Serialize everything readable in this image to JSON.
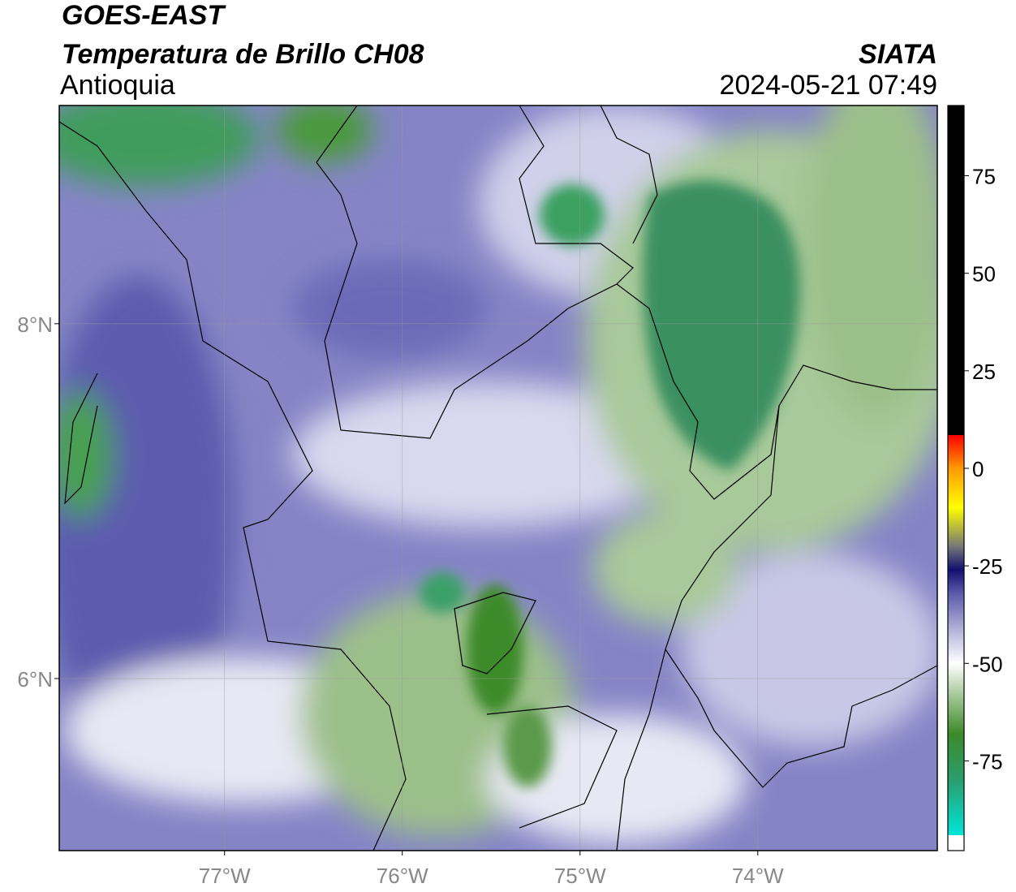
{
  "header": {
    "title": "GOES-EAST",
    "subtitle": "Temperatura de Brillo CH08",
    "region": "Antioquia",
    "source": "SIATA",
    "datetime": "2024-05-21 07:49"
  },
  "map": {
    "xlim": [
      -77.93,
      -72.99
    ],
    "ylim": [
      5.03,
      9.23
    ],
    "xticks": [
      {
        "value": -77,
        "label": "77°W"
      },
      {
        "value": -76,
        "label": "76°W"
      },
      {
        "value": -75,
        "label": "75°W"
      },
      {
        "value": -74,
        "label": "74°W"
      }
    ],
    "yticks": [
      {
        "value": 8,
        "label": "8°N"
      },
      {
        "value": 6,
        "label": "6°N"
      }
    ],
    "grid": true
  },
  "colorbar": {
    "lim": [
      -98,
      93
    ],
    "ticks": [
      75,
      50,
      25,
      0,
      -25,
      -50,
      -75
    ],
    "stops": [
      [
        -98,
        "#ffffff"
      ],
      [
        -94,
        "#ffffff"
      ],
      [
        -94,
        "#00e5d8"
      ],
      [
        -80,
        "#2a9e6e"
      ],
      [
        -68,
        "#3c8a2a"
      ],
      [
        -58,
        "#a8c99a"
      ],
      [
        -50,
        "#ffffff"
      ],
      [
        -42,
        "#b8b8dd"
      ],
      [
        -32,
        "#5a5aaa"
      ],
      [
        -26,
        "#101070"
      ],
      [
        -20,
        "#777777"
      ],
      [
        -10,
        "#ffff00"
      ],
      [
        0,
        "#ff9900"
      ],
      [
        8.5,
        "#ff0000"
      ],
      [
        8.5,
        "#000000"
      ],
      [
        93,
        "#000000"
      ]
    ]
  }
}
